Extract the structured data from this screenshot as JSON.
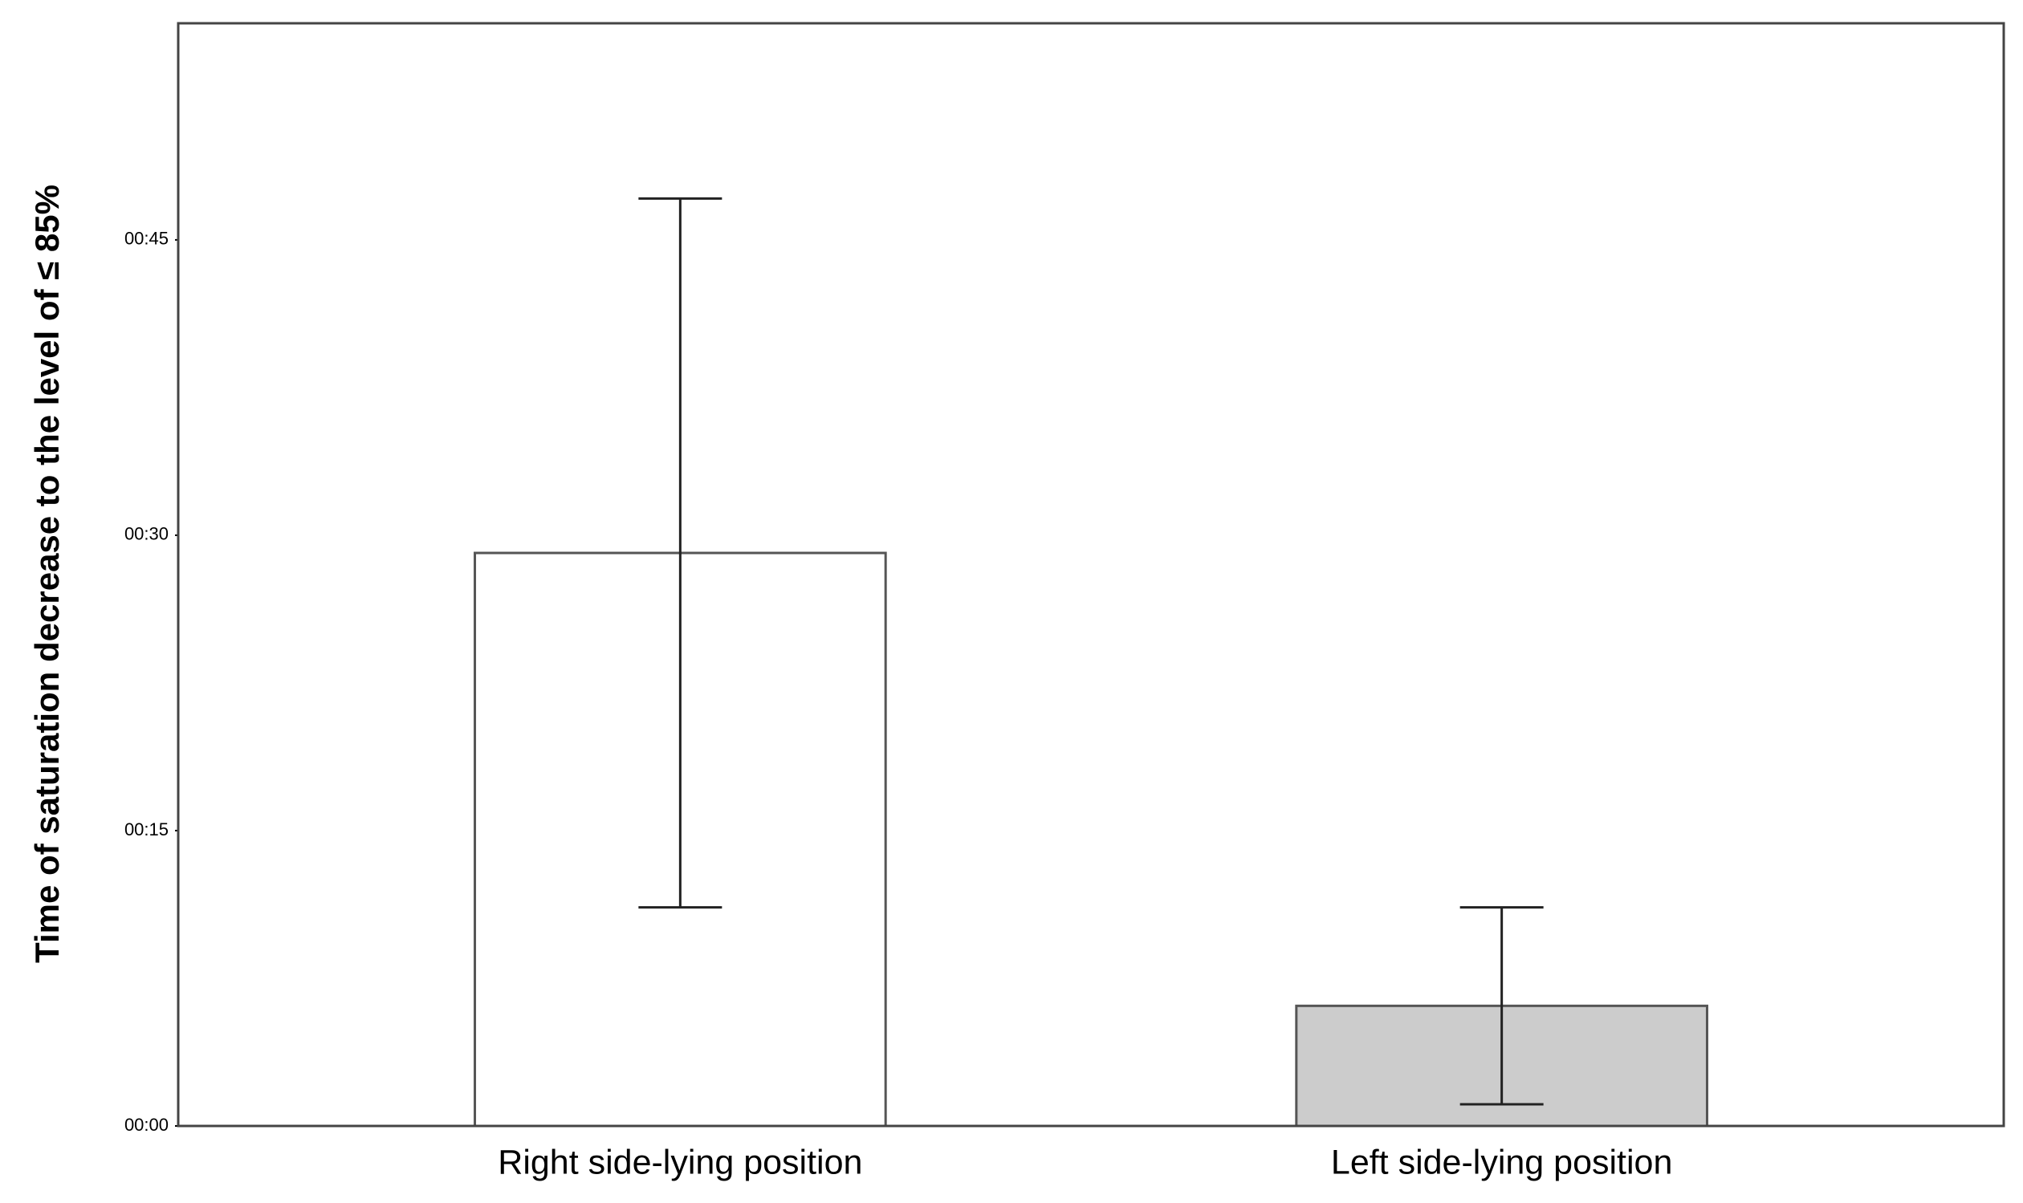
{
  "chart_data": {
    "type": "bar",
    "y_label": "Time of saturation decrease to the level of ≤ 85%",
    "categories": [
      "Right side-lying position",
      "Left side-lying position"
    ],
    "values": [
      29.1,
      6.1
    ],
    "errors": [
      18,
      5
    ],
    "colors": [
      "#ffffff",
      "#cccccc"
    ],
    "ylim": [
      0,
      56
    ],
    "yticks": [
      {
        "value": 0,
        "label": "00:00"
      },
      {
        "value": 15,
        "label": "00:15"
      },
      {
        "value": 30,
        "label": "00:30"
      },
      {
        "value": 45,
        "label": "00:45"
      }
    ],
    "grid": false
  }
}
